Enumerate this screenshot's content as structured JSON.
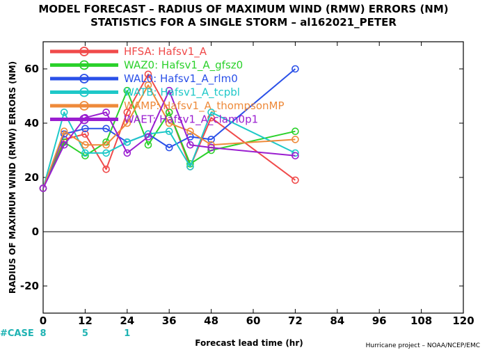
{
  "title_line1": "MODEL FORECAST – RADIUS OF MAXIMUM WIND (RMW) ERRORS (NM)",
  "title_line2": "STATISTICS FOR A SINGLE STORM – al162021_PETER",
  "ylabel": "RADIUS OF MAXIMUM WIND (RMW) ERRORS (NM)",
  "xlabel": "Forecast lead time (hr)",
  "credit": "Hurricane project – NOAA/NCEP/EMC",
  "case_label": "#CASE",
  "case_counts": [
    {
      "x": 0,
      "label": "8"
    },
    {
      "x": 12,
      "label": "5"
    },
    {
      "x": 24,
      "label": "1"
    }
  ],
  "chart_data": {
    "type": "line",
    "xlim": [
      0,
      120
    ],
    "ylim": [
      -30,
      70
    ],
    "xticks": [
      0,
      12,
      24,
      36,
      48,
      60,
      72,
      84,
      96,
      108,
      120
    ],
    "yticks": [
      -20,
      0,
      20,
      40,
      60
    ],
    "ytick_labels": [
      "-20",
      "0",
      "20",
      "40",
      "60"
    ],
    "grid": false,
    "legend_position": "top-left",
    "x": [
      0,
      6,
      12,
      18,
      24,
      30,
      36,
      42,
      48,
      72
    ],
    "series": [
      {
        "name": "HFSA: Hafsv1_A",
        "color": "#f04a4a",
        "values": [
          16,
          34,
          36,
          23,
          44,
          58,
          44,
          24,
          42,
          19
        ]
      },
      {
        "name": "WAZ0: Hafsv1_A_gfsz0",
        "color": "#2bd12b",
        "values": [
          16,
          33,
          28,
          33,
          52,
          32,
          44,
          25,
          30,
          37
        ]
      },
      {
        "name": "WAL0: Hafsv1_A_rlm0",
        "color": "#2a50e8",
        "values": [
          16,
          36,
          38,
          38,
          33,
          36,
          31,
          35,
          34,
          60
        ]
      },
      {
        "name": "WATB: Hafsv1_A_tcpbl",
        "color": "#1ec8c8",
        "values": [
          16,
          44,
          29,
          29,
          33,
          36,
          37,
          24,
          44,
          29
        ]
      },
      {
        "name": "WAMP: Hafsv1_A_thompsonMP",
        "color": "#ee8a3a",
        "values": [
          16,
          37,
          32,
          32,
          40,
          54,
          40,
          37,
          32,
          34
        ]
      },
      {
        "name": "WAET: Hafsv1_A_clam0p1",
        "color": "#9a1ed0",
        "values": [
          16,
          32,
          42,
          44,
          29,
          35,
          52,
          32,
          31,
          28
        ]
      }
    ]
  }
}
